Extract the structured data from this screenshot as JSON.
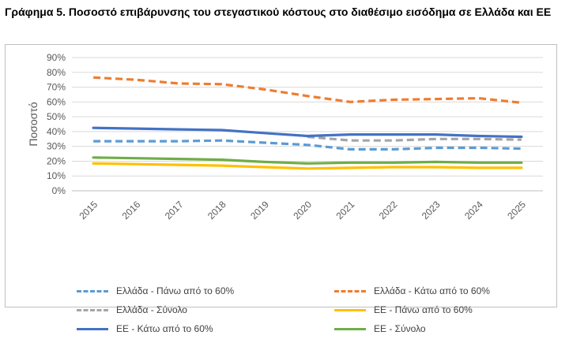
{
  "title": "Γράφημα 5. Ποσοστό επιβάρυνσης του στεγαστικού κόστους στο διαθέσιμο εισόδημα σε Ελλάδα και ΕΕ",
  "chart_data": {
    "type": "line",
    "title": "",
    "xlabel": "",
    "ylabel": "Ποσοστό",
    "ylim": [
      0,
      90
    ],
    "y_ticks": [
      "0%",
      "10%",
      "20%",
      "30%",
      "40%",
      "50%",
      "60%",
      "70%",
      "80%",
      "90%"
    ],
    "grid": true,
    "legend_position": "bottom",
    "categories": [
      "2015",
      "2016",
      "2017",
      "2018",
      "2019",
      "2020",
      "2021",
      "2022",
      "2023",
      "2024",
      "2025"
    ],
    "series": [
      {
        "name": "Ελλάδα - Πάνω από το 60%",
        "color": "#5b9bd5",
        "dash": true,
        "values": [
          33.5,
          33.5,
          33.5,
          34.0,
          32.5,
          31.0,
          28.0,
          28.0,
          29.0,
          29.0,
          28.5
        ]
      },
      {
        "name": "Ελλάδα - Κάτω από το 60%",
        "color": "#ed7d31",
        "dash": true,
        "values": [
          76.5,
          75.0,
          72.5,
          72.0,
          68.5,
          64.0,
          60.0,
          61.5,
          62.0,
          62.5,
          59.5
        ]
      },
      {
        "name": "Ελλάδα - Σύνολο",
        "color": "#a5a5a5",
        "dash": true,
        "values": [
          null,
          null,
          null,
          null,
          null,
          36.5,
          34.0,
          34.0,
          35.0,
          35.0,
          34.5
        ]
      },
      {
        "name": "ΕΕ - Πάνω από το 60%",
        "color": "#ffc000",
        "dash": false,
        "values": [
          18.5,
          18.0,
          17.5,
          17.0,
          16.0,
          15.0,
          15.5,
          16.0,
          16.0,
          15.5,
          15.5
        ]
      },
      {
        "name": "ΕΕ - Κάτω από το 60%",
        "color": "#4472c4",
        "dash": false,
        "values": [
          42.5,
          42.0,
          41.5,
          41.0,
          39.0,
          37.0,
          38.0,
          38.0,
          38.0,
          37.0,
          36.5
        ]
      },
      {
        "name": "ΕΕ - Σύνολο",
        "color": "#70ad47",
        "dash": false,
        "values": [
          22.5,
          22.0,
          21.5,
          21.0,
          19.5,
          18.5,
          19.0,
          19.0,
          19.5,
          19.0,
          19.0
        ]
      }
    ]
  }
}
